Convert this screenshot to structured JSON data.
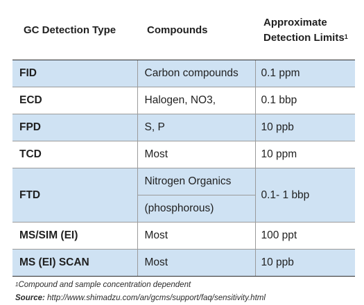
{
  "table": {
    "headers": {
      "type": "GC Detection Type",
      "compounds": "Compounds",
      "limits": "Approximate Detection Limits",
      "limits_marker": "1"
    },
    "rows": [
      {
        "type": "FID",
        "compounds": "Carbon compounds",
        "limit": "0.1 ppm"
      },
      {
        "type": "ECD",
        "compounds": "Halogen, NO3,",
        "limit": "0.1 bbp"
      },
      {
        "type": "FPD",
        "compounds": "S, P",
        "limit": "10 ppb"
      },
      {
        "type": "TCD",
        "compounds": "Most",
        "limit": "10 ppm"
      },
      {
        "type": "FTD",
        "compounds": [
          "Nitrogen Organics",
          "(phosphorous)"
        ],
        "limit": "0.1- 1 bbp"
      },
      {
        "type": "MS/SIM (EI)",
        "compounds": "Most",
        "limit": "100 ppt"
      },
      {
        "type": "MS (EI) SCAN",
        "compounds": "Most",
        "limit": "10 ppb"
      }
    ]
  },
  "notes": {
    "footnote_marker": "1",
    "footnote_text": "Compound and sample concentration dependent",
    "source_label": "Source:",
    "source_url": "http://www.shimadzu.com/an/gcms/support/faq/sensitivity.html"
  },
  "colors": {
    "shaded_row": "#cfe2f3",
    "text": "#1f1f1f",
    "rule": "#2a2a2a"
  }
}
